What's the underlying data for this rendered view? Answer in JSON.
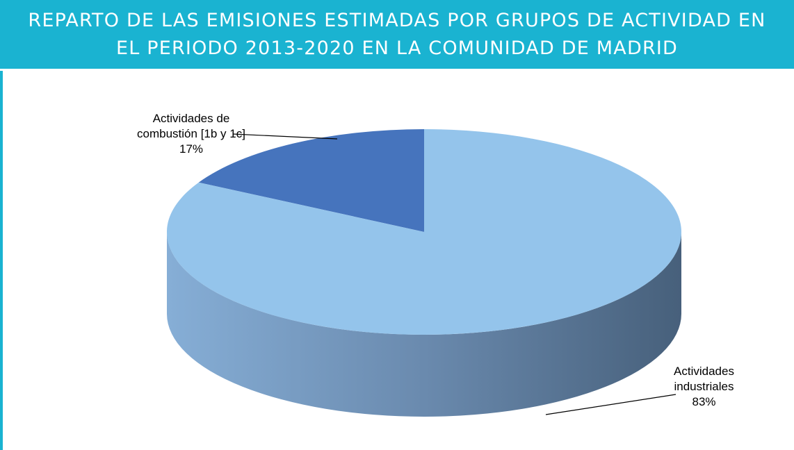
{
  "chart_data": {
    "type": "pie",
    "title": "REPARTO DE LAS EMISIONES ESTIMADAS POR GRUPOS DE ACTIVIDAD EN EL PERIODO 2013-2020 EN LA COMUNIDAD DE MADRID",
    "categories": [
      "Actividades de combustión [1b y 1c]",
      "Actividades industriales"
    ],
    "values": [
      17,
      83
    ],
    "value_labels": [
      "17%",
      "83%"
    ],
    "colors": [
      "#4674bd",
      "#94c4eb"
    ]
  }
}
